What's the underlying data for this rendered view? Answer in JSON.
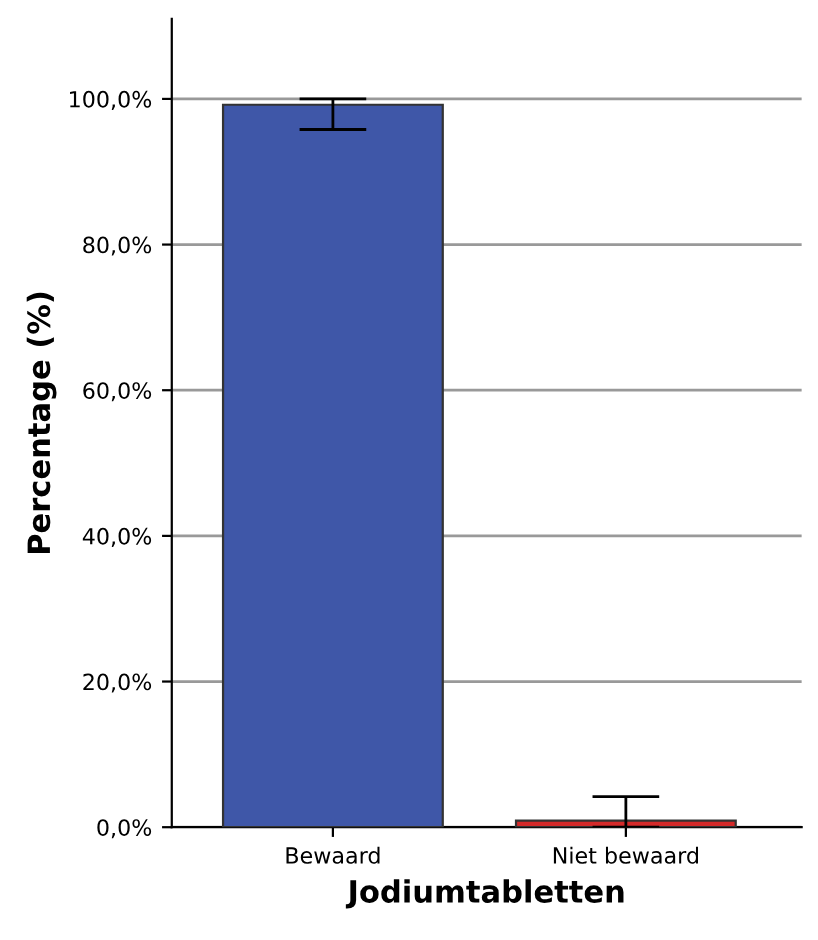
{
  "chart_data": {
    "type": "bar",
    "xlabel": "Jodiumtabletten",
    "ylabel": "Percentage (%)",
    "categories": [
      "Bewaard",
      "Niet bewaard"
    ],
    "values": [
      99.2,
      0.9
    ],
    "colors": [
      "#3f57a8",
      "#d42a2a"
    ],
    "errors": [
      [
        95.8,
        100.0
      ],
      [
        0.0,
        4.2
      ]
    ],
    "ylim": [
      0,
      111
    ],
    "yticks": [
      {
        "value": 0,
        "label": "0,0%"
      },
      {
        "value": 20,
        "label": "20,0%"
      },
      {
        "value": 40,
        "label": "40,0%"
      },
      {
        "value": 60,
        "label": "60,0%"
      },
      {
        "value": 80,
        "label": "80,0%"
      },
      {
        "value": 100,
        "label": "100,0%"
      }
    ],
    "grid": "y"
  }
}
